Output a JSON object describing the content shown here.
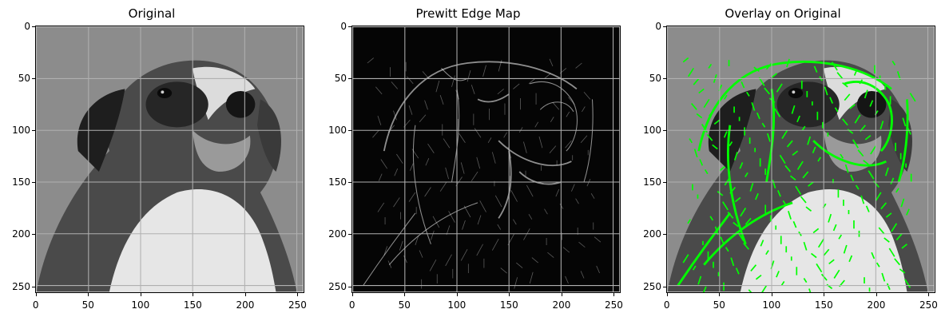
{
  "figure": {
    "panels": [
      {
        "title": "Original",
        "kind": "grayscale-photo"
      },
      {
        "title": "Prewitt Edge Map",
        "kind": "edge-map"
      },
      {
        "title": "Overlay on Original",
        "kind": "overlay"
      }
    ],
    "axis_ticks": {
      "x": [
        "0",
        "50",
        "100",
        "150",
        "200",
        "250"
      ],
      "y": [
        "0",
        "50",
        "100",
        "150",
        "200",
        "250"
      ]
    },
    "grid": true,
    "overlay_color": "#00ff00",
    "edge_color": "#ffffff",
    "background_gray": "#8c8c8c"
  }
}
